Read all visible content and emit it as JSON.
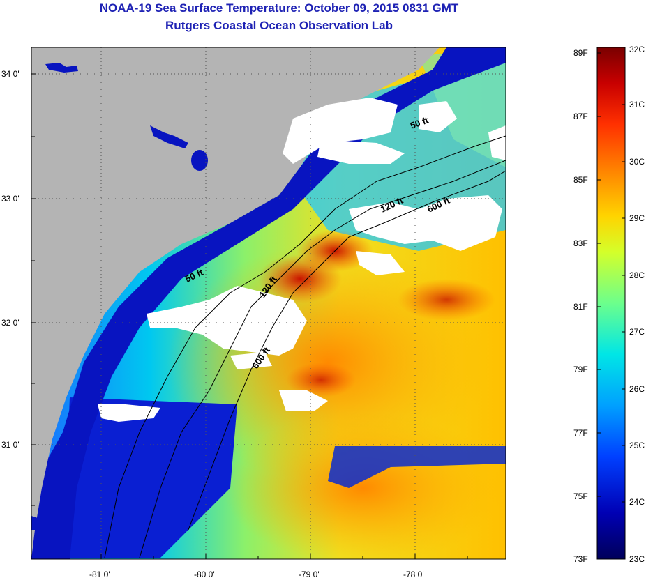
{
  "title": {
    "line1": "NOAA-19 Sea Surface Temperature:  October 09, 2015 0831 GMT",
    "line2": "Rutgers Coastal Ocean Observation Lab"
  },
  "map": {
    "lat_labels": [
      "34 0'",
      "33 0'",
      "32 0'",
      "31 0'"
    ],
    "lon_labels": [
      "-81 0'",
      "-80 0'",
      "-79 0'",
      "-78 0'"
    ],
    "isobath_labels": [
      "50 ft",
      "120 ft",
      "600 ft",
      "50 ft",
      "120 ft",
      "600 ft"
    ],
    "colors": {
      "land": "#b4b4b4",
      "cloud": "#ffffff",
      "coast": "#000000"
    }
  },
  "colorbar": {
    "fahrenheit_labels": [
      "89F",
      "87F",
      "85F",
      "83F",
      "81F",
      "79F",
      "77F",
      "75F",
      "73F"
    ],
    "celsius_labels": [
      "32C",
      "31C",
      "30C",
      "29C",
      "28C",
      "27C",
      "26C",
      "25C",
      "24C",
      "23C"
    ],
    "colors": [
      "#7a0000",
      "#c80000",
      "#ff3000",
      "#ff8c00",
      "#ffd400",
      "#d4ff2a",
      "#6cff8c",
      "#00e6e6",
      "#00a0ff",
      "#0040ff",
      "#0000b4",
      "#00005a"
    ]
  }
}
